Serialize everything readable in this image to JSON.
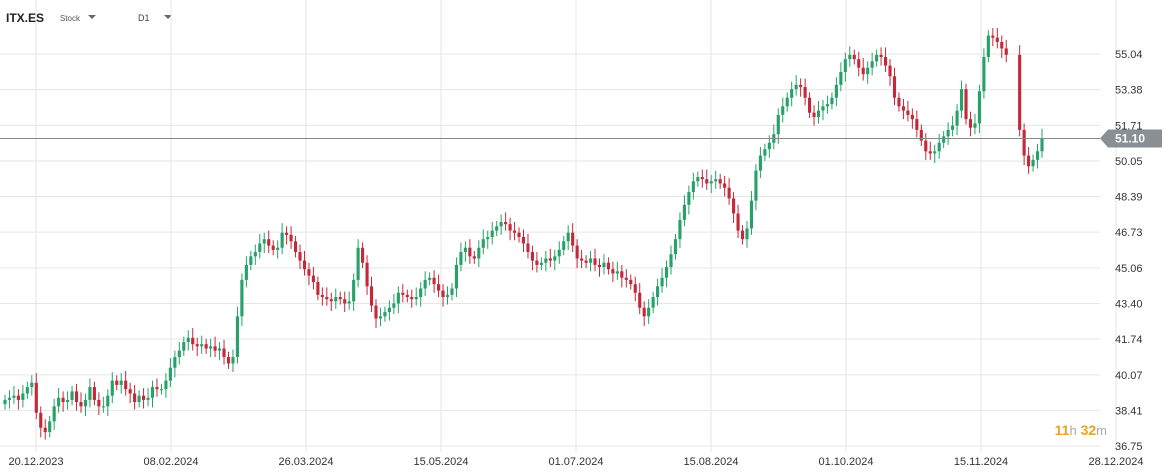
{
  "toolbar": {
    "symbol": "ITX.ES",
    "instrument_type": "Stock",
    "timeframe": "D1"
  },
  "timer": {
    "hours": "11",
    "h_unit": "h",
    "minutes": "32",
    "m_unit": "m"
  },
  "colors": {
    "up": "#26a269",
    "down": "#c4283a",
    "grid": "#e6e6e6",
    "price_line": "#888888",
    "badge": "#8a8f94"
  },
  "chart_data": {
    "type": "candlestick",
    "title": "",
    "ylim": [
      36.75,
      56.6
    ],
    "y_ticks": [
      "55.04",
      "53.38",
      "51.71",
      "50.05",
      "48.39",
      "46.73",
      "45.06",
      "43.40",
      "41.74",
      "40.07",
      "38.41",
      "36.75"
    ],
    "x_ticks": [
      "20.12.2023",
      "08.02.2024",
      "26.03.2024",
      "15.05.2024",
      "01.07.2024",
      "15.08.2024",
      "01.10.2024",
      "15.11.2024",
      "28.12.2024"
    ],
    "current_price": "51.10",
    "grid": true,
    "closes": [
      38.9,
      39.0,
      39.1,
      38.9,
      39.2,
      39.5,
      39.7,
      38.3,
      37.6,
      37.4,
      37.9,
      38.6,
      39.0,
      38.8,
      38.9,
      39.3,
      38.8,
      38.6,
      38.9,
      39.5,
      38.9,
      38.6,
      38.6,
      39.1,
      39.8,
      39.6,
      39.8,
      39.4,
      39.2,
      38.8,
      39.1,
      38.9,
      39.0,
      39.5,
      39.4,
      39.4,
      39.8,
      40.4,
      40.9,
      41.2,
      41.6,
      41.8,
      41.5,
      41.4,
      41.5,
      41.3,
      41.4,
      41.2,
      41.3,
      40.9,
      40.6,
      40.9,
      42.8,
      44.5,
      45.2,
      45.6,
      45.8,
      46.2,
      46.4,
      46.1,
      45.9,
      46.0,
      46.7,
      46.6,
      46.3,
      45.8,
      45.4,
      45.0,
      44.7,
      44.4,
      43.8,
      43.7,
      43.6,
      43.5,
      43.7,
      43.6,
      43.4,
      43.5,
      44.5,
      46.0,
      45.3,
      44.2,
      43.3,
      42.7,
      42.8,
      43.0,
      43.2,
      43.4,
      43.9,
      43.8,
      43.7,
      43.6,
      43.7,
      44.1,
      44.5,
      44.6,
      44.3,
      44.0,
      43.7,
      43.8,
      44.1,
      45.2,
      45.8,
      46.0,
      45.6,
      45.5,
      46.0,
      46.4,
      46.5,
      46.8,
      47.0,
      47.2,
      47.1,
      46.8,
      46.7,
      46.5,
      46.2,
      45.8,
      45.4,
      45.2,
      45.3,
      45.5,
      45.4,
      45.6,
      45.9,
      46.3,
      46.7,
      46.1,
      45.5,
      45.4,
      45.3,
      45.5,
      45.2,
      45.1,
      45.3,
      45.0,
      44.8,
      44.9,
      44.6,
      44.5,
      44.3,
      43.9,
      43.2,
      42.8,
      43.2,
      43.7,
      44.2,
      44.6,
      45.1,
      45.7,
      46.4,
      47.3,
      48.0,
      48.6,
      49.1,
      49.3,
      49.2,
      49.0,
      49.1,
      49.2,
      49.0,
      48.8,
      48.3,
      47.6,
      46.8,
      46.4,
      46.9,
      48.2,
      49.6,
      50.3,
      50.6,
      50.9,
      51.3,
      52.2,
      52.6,
      53.0,
      53.4,
      53.6,
      53.5,
      53.0,
      52.3,
      52.1,
      52.4,
      52.6,
      52.7,
      53.0,
      53.6,
      54.2,
      54.8,
      55.0,
      54.8,
      54.4,
      54.1,
      54.4,
      54.7,
      55.0,
      54.9,
      54.5,
      54.0,
      53.0,
      52.6,
      52.4,
      52.2,
      52.0,
      51.5,
      51.0,
      50.5,
      50.4,
      50.5,
      50.9,
      51.2,
      51.5,
      51.7,
      52.4,
      53.4,
      52.0,
      51.6,
      51.8,
      53.3,
      54.9,
      55.9,
      55.8,
      55.6,
      55.3,
      55.0,
      null,
      null,
      51.5,
      50.3,
      49.8,
      50.1,
      50.5,
      51.1
    ]
  }
}
